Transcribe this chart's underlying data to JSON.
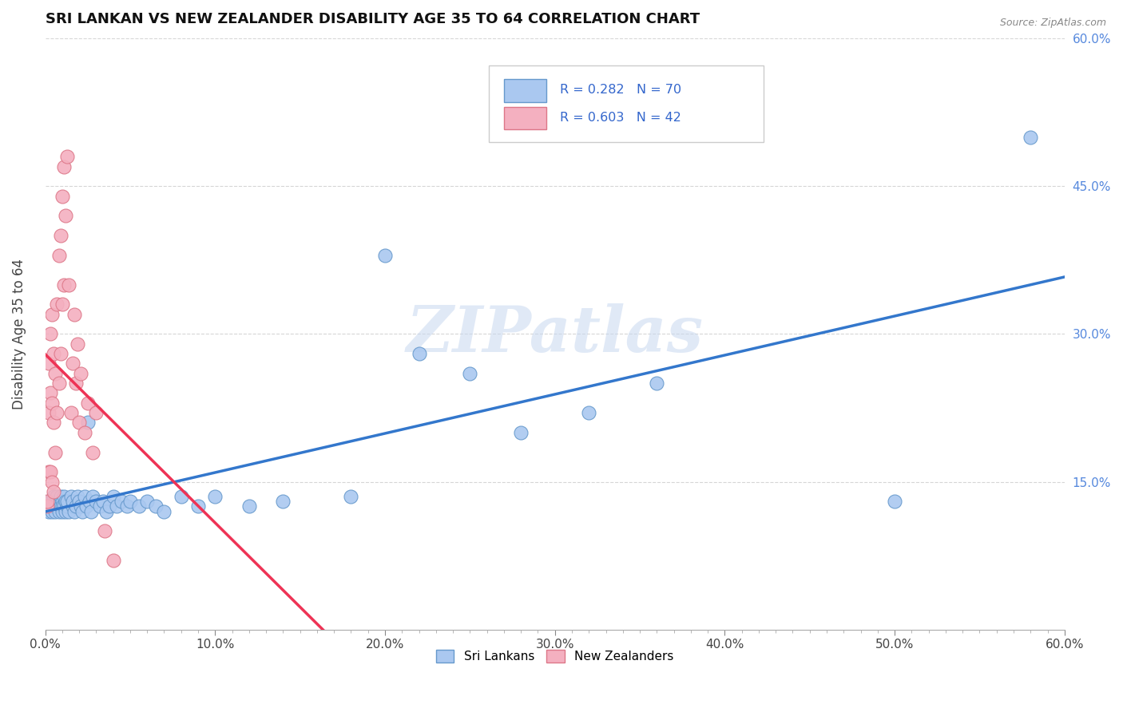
{
  "title": "SRI LANKAN VS NEW ZEALANDER DISABILITY AGE 35 TO 64 CORRELATION CHART",
  "source_text": "Source: ZipAtlas.com",
  "ylabel": "Disability Age 35 to 64",
  "xlim": [
    0.0,
    0.6
  ],
  "ylim": [
    0.0,
    0.6
  ],
  "xtick_labels": [
    "0.0%",
    "",
    "",
    "",
    "",
    "",
    "",
    "",
    "",
    "10.0%",
    "",
    "",
    "",
    "",
    "",
    "",
    "",
    "",
    "",
    "20.0%",
    "",
    "",
    "",
    "",
    "",
    "",
    "",
    "",
    "",
    "30.0%",
    "",
    "",
    "",
    "",
    "",
    "",
    "",
    "",
    "",
    "40.0%",
    "",
    "",
    "",
    "",
    "",
    "",
    "",
    "",
    "",
    "50.0%",
    "",
    "",
    "",
    "",
    "",
    "",
    "",
    "",
    "",
    "60.0%"
  ],
  "xtick_vals": [
    0.0,
    0.01,
    0.02,
    0.03,
    0.04,
    0.05,
    0.06,
    0.07,
    0.08,
    0.09,
    0.1,
    0.11,
    0.12,
    0.13,
    0.14,
    0.15,
    0.16,
    0.17,
    0.18,
    0.19,
    0.2,
    0.21,
    0.22,
    0.23,
    0.24,
    0.25,
    0.26,
    0.27,
    0.28,
    0.29,
    0.3,
    0.31,
    0.32,
    0.33,
    0.34,
    0.35,
    0.36,
    0.37,
    0.38,
    0.39,
    0.4,
    0.41,
    0.42,
    0.43,
    0.44,
    0.45,
    0.46,
    0.47,
    0.48,
    0.49,
    0.5,
    0.51,
    0.52,
    0.53,
    0.54,
    0.55,
    0.56,
    0.57,
    0.58,
    0.59,
    0.6
  ],
  "ytick_labels_right": [
    "15.0%",
    "30.0%",
    "45.0%",
    "60.0%"
  ],
  "ytick_vals": [
    0.15,
    0.3,
    0.45,
    0.6
  ],
  "sri_lankans_color": "#aac8f0",
  "sri_lankans_edge": "#6699cc",
  "new_zealanders_color": "#f4b0c0",
  "new_zealanders_edge": "#dd7788",
  "trend_sri_color": "#3377cc",
  "trend_nz_color": "#ee3355",
  "R_sri": 0.282,
  "N_sri": 70,
  "R_nz": 0.603,
  "N_nz": 42,
  "watermark": "ZIPatlas",
  "watermark_color": "#c8d8f0",
  "legend_labels": [
    "Sri Lankans",
    "New Zealanders"
  ],
  "sri_x": [
    0.001,
    0.002,
    0.002,
    0.003,
    0.003,
    0.004,
    0.004,
    0.005,
    0.005,
    0.006,
    0.006,
    0.007,
    0.007,
    0.008,
    0.008,
    0.009,
    0.009,
    0.01,
    0.01,
    0.01,
    0.011,
    0.011,
    0.012,
    0.012,
    0.013,
    0.013,
    0.014,
    0.015,
    0.016,
    0.016,
    0.017,
    0.018,
    0.019,
    0.02,
    0.021,
    0.022,
    0.023,
    0.024,
    0.025,
    0.026,
    0.027,
    0.028,
    0.03,
    0.032,
    0.034,
    0.036,
    0.038,
    0.04,
    0.042,
    0.045,
    0.048,
    0.05,
    0.055,
    0.06,
    0.065,
    0.07,
    0.08,
    0.09,
    0.1,
    0.12,
    0.14,
    0.18,
    0.2,
    0.22,
    0.25,
    0.28,
    0.32,
    0.36,
    0.5,
    0.58
  ],
  "sri_y": [
    0.125,
    0.13,
    0.12,
    0.125,
    0.13,
    0.12,
    0.125,
    0.135,
    0.125,
    0.13,
    0.12,
    0.135,
    0.125,
    0.13,
    0.12,
    0.135,
    0.125,
    0.13,
    0.125,
    0.12,
    0.135,
    0.125,
    0.13,
    0.12,
    0.125,
    0.13,
    0.12,
    0.135,
    0.125,
    0.13,
    0.12,
    0.125,
    0.135,
    0.13,
    0.125,
    0.12,
    0.135,
    0.125,
    0.21,
    0.13,
    0.12,
    0.135,
    0.13,
    0.125,
    0.13,
    0.12,
    0.125,
    0.135,
    0.125,
    0.13,
    0.125,
    0.13,
    0.125,
    0.13,
    0.125,
    0.12,
    0.135,
    0.125,
    0.135,
    0.125,
    0.13,
    0.135,
    0.38,
    0.28,
    0.26,
    0.2,
    0.22,
    0.25,
    0.13,
    0.5
  ],
  "nz_x": [
    0.001,
    0.001,
    0.002,
    0.002,
    0.002,
    0.003,
    0.003,
    0.003,
    0.004,
    0.004,
    0.004,
    0.005,
    0.005,
    0.005,
    0.006,
    0.006,
    0.007,
    0.007,
    0.008,
    0.008,
    0.009,
    0.009,
    0.01,
    0.01,
    0.011,
    0.011,
    0.012,
    0.013,
    0.014,
    0.015,
    0.016,
    0.017,
    0.018,
    0.019,
    0.02,
    0.021,
    0.023,
    0.025,
    0.028,
    0.03,
    0.035,
    0.04
  ],
  "nz_y": [
    0.125,
    0.13,
    0.27,
    0.22,
    0.16,
    0.3,
    0.24,
    0.16,
    0.32,
    0.23,
    0.15,
    0.28,
    0.21,
    0.14,
    0.26,
    0.18,
    0.33,
    0.22,
    0.38,
    0.25,
    0.4,
    0.28,
    0.44,
    0.33,
    0.47,
    0.35,
    0.42,
    0.48,
    0.35,
    0.22,
    0.27,
    0.32,
    0.25,
    0.29,
    0.21,
    0.26,
    0.2,
    0.23,
    0.18,
    0.22,
    0.1,
    0.07
  ]
}
